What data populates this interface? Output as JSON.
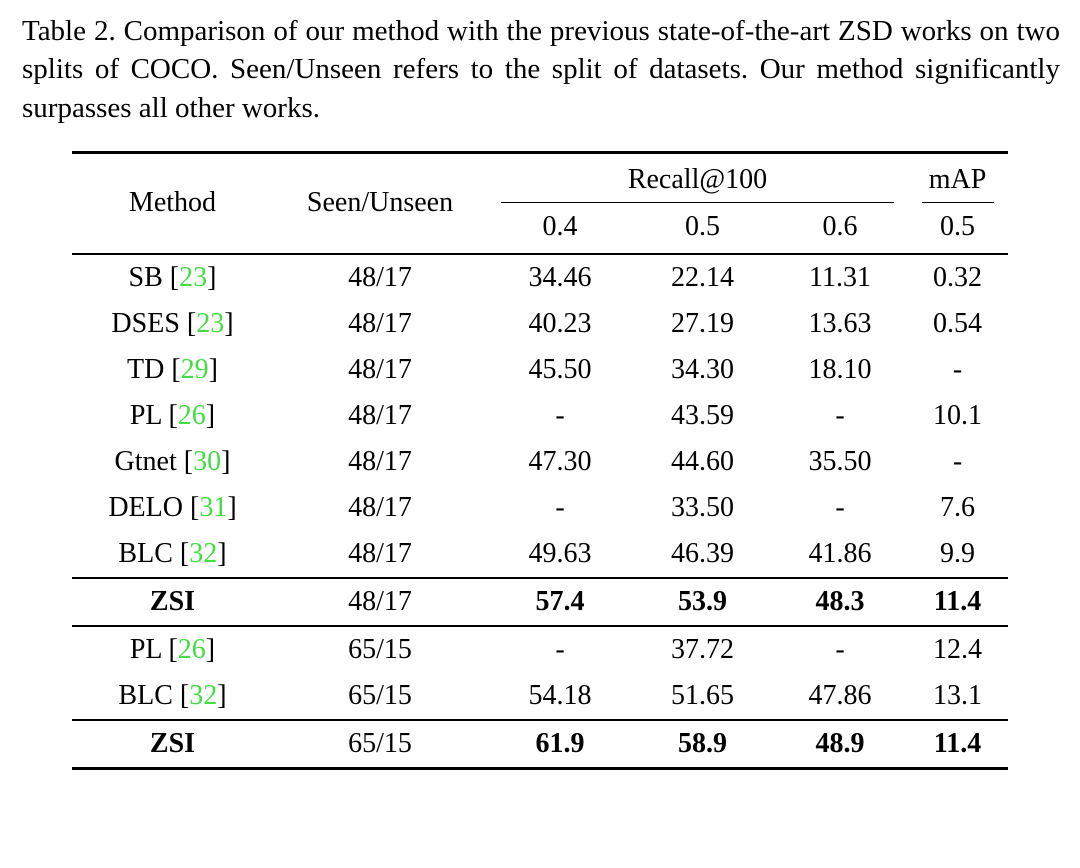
{
  "caption": {
    "label": "Table 2.",
    "text": "Comparison of our method with the previous state-of-the-art ZSD works on two splits of COCO. Seen/Unseen refers to the split of datasets. Our method significantly surpasses all other works."
  },
  "table": {
    "header": {
      "method": "Method",
      "seen_unseen": "Seen/Unseen",
      "recall_group": "Recall@100",
      "map_group": "mAP",
      "recall_cols": [
        "0.4",
        "0.5",
        "0.6"
      ],
      "map_col": "0.5"
    },
    "rows": [
      {
        "method": "SB",
        "cite": "23",
        "split": "48/17",
        "values": [
          "34.46",
          "22.14",
          "11.31",
          "0.32"
        ],
        "bold": false,
        "rule_above": false
      },
      {
        "method": "DSES",
        "cite": "23",
        "split": "48/17",
        "values": [
          "40.23",
          "27.19",
          "13.63",
          "0.54"
        ],
        "bold": false,
        "rule_above": false
      },
      {
        "method": "TD",
        "cite": "29",
        "split": "48/17",
        "values": [
          "45.50",
          "34.30",
          "18.10",
          "-"
        ],
        "bold": false,
        "rule_above": false
      },
      {
        "method": "PL",
        "cite": "26",
        "split": "48/17",
        "values": [
          "-",
          "43.59",
          "-",
          "10.1"
        ],
        "bold": false,
        "rule_above": false
      },
      {
        "method": "Gtnet",
        "cite": "30",
        "split": "48/17",
        "values": [
          "47.30",
          "44.60",
          "35.50",
          "-"
        ],
        "bold": false,
        "rule_above": false
      },
      {
        "method": "DELO",
        "cite": "31",
        "split": "48/17",
        "values": [
          "-",
          "33.50",
          "-",
          "7.6"
        ],
        "bold": false,
        "rule_above": false
      },
      {
        "method": "BLC",
        "cite": "32",
        "split": "48/17",
        "values": [
          "49.63",
          "46.39",
          "41.86",
          "9.9"
        ],
        "bold": false,
        "rule_above": false
      },
      {
        "method": "ZSI",
        "cite": "",
        "split": "48/17",
        "values": [
          "57.4",
          "53.9",
          "48.3",
          "11.4"
        ],
        "bold": true,
        "rule_above": true
      },
      {
        "method": "PL",
        "cite": "26",
        "split": "65/15",
        "values": [
          "-",
          "37.72",
          "-",
          "12.4"
        ],
        "bold": false,
        "rule_above": true
      },
      {
        "method": "BLC",
        "cite": "32",
        "split": "65/15",
        "values": [
          "54.18",
          "51.65",
          "47.86",
          "13.1"
        ],
        "bold": false,
        "rule_above": false
      },
      {
        "method": "ZSI",
        "cite": "",
        "split": "65/15",
        "values": [
          "61.9",
          "58.9",
          "48.9",
          "11.4"
        ],
        "bold": true,
        "rule_above": true
      }
    ]
  },
  "colors": {
    "citation_green": "#44dd44",
    "text": "#000000",
    "background": "#ffffff"
  }
}
